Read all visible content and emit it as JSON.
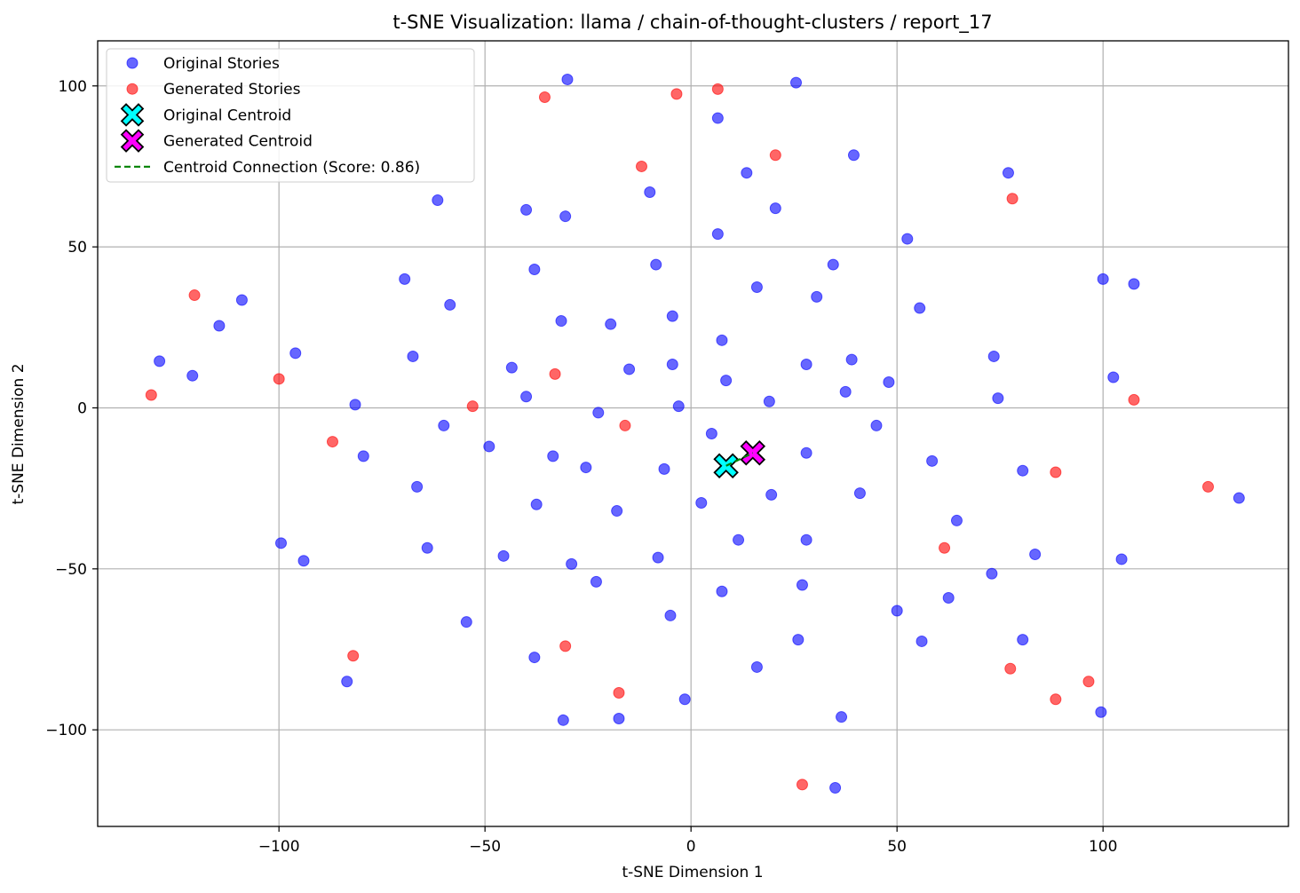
{
  "chart_data": {
    "type": "scatter",
    "title": "t-SNE Visualization: llama / chain-of-thought-clusters / report_17",
    "xlabel": "t-SNE Dimension 1",
    "ylabel": "t-SNE Dimension 2",
    "xlim": [
      -144,
      145
    ],
    "ylim": [
      -130,
      114
    ],
    "xticks": [
      -100,
      -50,
      0,
      50,
      100
    ],
    "yticks": [
      -100,
      -50,
      0,
      50,
      100
    ],
    "xtick_labels": [
      "−100",
      "−50",
      "0",
      "50",
      "100"
    ],
    "ytick_labels": [
      "−100",
      "−50",
      "0",
      "50",
      "100"
    ],
    "grid": true,
    "legend_position": "top-left",
    "legend": [
      {
        "label": "Original Stories",
        "kind": "point",
        "color": "#0000ff"
      },
      {
        "label": "Generated Stories",
        "kind": "point",
        "color": "#ff0000"
      },
      {
        "label": "Original Centroid",
        "kind": "x",
        "color": "#00ffff"
      },
      {
        "label": "Generated Centroid",
        "kind": "x",
        "color": "#ff00ff"
      },
      {
        "label": "Centroid Connection (Score: 0.86)",
        "kind": "dashed",
        "color": "#008000"
      }
    ],
    "series": [
      {
        "name": "Original Stories",
        "color": "#0000ff",
        "points": [
          [
            -30,
            102
          ],
          [
            25.5,
            101
          ],
          [
            6.5,
            90
          ],
          [
            39.5,
            78.5
          ],
          [
            13.5,
            73
          ],
          [
            77,
            73
          ],
          [
            -10,
            67
          ],
          [
            -61.5,
            64.5
          ],
          [
            -40,
            61.5
          ],
          [
            20.5,
            62
          ],
          [
            -30.5,
            59.5
          ],
          [
            6.5,
            54
          ],
          [
            52.5,
            52.5
          ],
          [
            -38,
            43
          ],
          [
            -8.5,
            44.5
          ],
          [
            34.5,
            44.5
          ],
          [
            100,
            40
          ],
          [
            107.5,
            38.5
          ],
          [
            -69.5,
            40
          ],
          [
            16,
            37.5
          ],
          [
            30.5,
            34.5
          ],
          [
            -109,
            33.5
          ],
          [
            -58.5,
            32
          ],
          [
            55.5,
            31
          ],
          [
            -4.5,
            28.5
          ],
          [
            -31.5,
            27
          ],
          [
            -19.5,
            26
          ],
          [
            -114.5,
            25.5
          ],
          [
            7.5,
            21
          ],
          [
            -96,
            17
          ],
          [
            -129,
            14.5
          ],
          [
            -67.5,
            16
          ],
          [
            73.5,
            16
          ],
          [
            39,
            15
          ],
          [
            -4.5,
            13.5
          ],
          [
            28,
            13.5
          ],
          [
            -43.5,
            12.5
          ],
          [
            -15,
            12
          ],
          [
            -121,
            10
          ],
          [
            102.5,
            9.5
          ],
          [
            8.5,
            8.5
          ],
          [
            48,
            8
          ],
          [
            37.5,
            5
          ],
          [
            -40,
            3.5
          ],
          [
            74.5,
            3
          ],
          [
            19,
            2
          ],
          [
            -81.5,
            1
          ],
          [
            -3,
            0.5
          ],
          [
            -22.5,
            -1.5
          ],
          [
            45,
            -5.5
          ],
          [
            -60,
            -5.5
          ],
          [
            5,
            -8
          ],
          [
            -49,
            -12
          ],
          [
            -33.5,
            -15
          ],
          [
            -79.5,
            -15
          ],
          [
            28,
            -14
          ],
          [
            58.5,
            -16.5
          ],
          [
            -25.5,
            -18.5
          ],
          [
            -6.5,
            -19
          ],
          [
            80.5,
            -19.5
          ],
          [
            19.5,
            -27
          ],
          [
            41,
            -26.5
          ],
          [
            -66.5,
            -24.5
          ],
          [
            2.5,
            -29.5
          ],
          [
            -37.5,
            -30
          ],
          [
            133,
            -28
          ],
          [
            -18,
            -32
          ],
          [
            64.5,
            -35
          ],
          [
            -99.5,
            -42
          ],
          [
            11.5,
            -41
          ],
          [
            28,
            -41
          ],
          [
            -64,
            -43.5
          ],
          [
            -94,
            -47.5
          ],
          [
            -45.5,
            -46
          ],
          [
            -8,
            -46.5
          ],
          [
            83.5,
            -45.5
          ],
          [
            104.5,
            -47
          ],
          [
            -29,
            -48.5
          ],
          [
            73,
            -51.5
          ],
          [
            -23,
            -54
          ],
          [
            27,
            -55
          ],
          [
            7.5,
            -57
          ],
          [
            62.5,
            -59
          ],
          [
            50,
            -63
          ],
          [
            -5,
            -64.5
          ],
          [
            -54.5,
            -66.5
          ],
          [
            26,
            -72
          ],
          [
            56,
            -72.5
          ],
          [
            80.5,
            -72
          ],
          [
            -38,
            -77.5
          ],
          [
            16,
            -80.5
          ],
          [
            -83.5,
            -85
          ],
          [
            -1.5,
            -90.5
          ],
          [
            99.5,
            -94.5
          ],
          [
            36.5,
            -96
          ],
          [
            -17.5,
            -96.5
          ],
          [
            -31,
            -97
          ],
          [
            35,
            -118
          ]
        ]
      },
      {
        "name": "Generated Stories",
        "color": "#ff0000",
        "points": [
          [
            6.5,
            99
          ],
          [
            -3.5,
            97.5
          ],
          [
            -35.5,
            96.5
          ],
          [
            20.5,
            78.5
          ],
          [
            -12,
            75
          ],
          [
            78,
            65
          ],
          [
            -120.5,
            35
          ],
          [
            -100,
            9
          ],
          [
            -33,
            10.5
          ],
          [
            -131,
            4
          ],
          [
            -53,
            0.5
          ],
          [
            107.5,
            2.5
          ],
          [
            -16,
            -5.5
          ],
          [
            -87,
            -10.5
          ],
          [
            88.5,
            -20
          ],
          [
            125.5,
            -24.5
          ],
          [
            61.5,
            -43.5
          ],
          [
            -30.5,
            -74
          ],
          [
            -82,
            -77
          ],
          [
            77.5,
            -81
          ],
          [
            96.5,
            -85
          ],
          [
            -17.5,
            -88.5
          ],
          [
            88.5,
            -90.5
          ],
          [
            27,
            -117
          ]
        ]
      }
    ],
    "centroids": {
      "original": [
        8.5,
        -18
      ],
      "generated": [
        15,
        -14
      ]
    }
  }
}
